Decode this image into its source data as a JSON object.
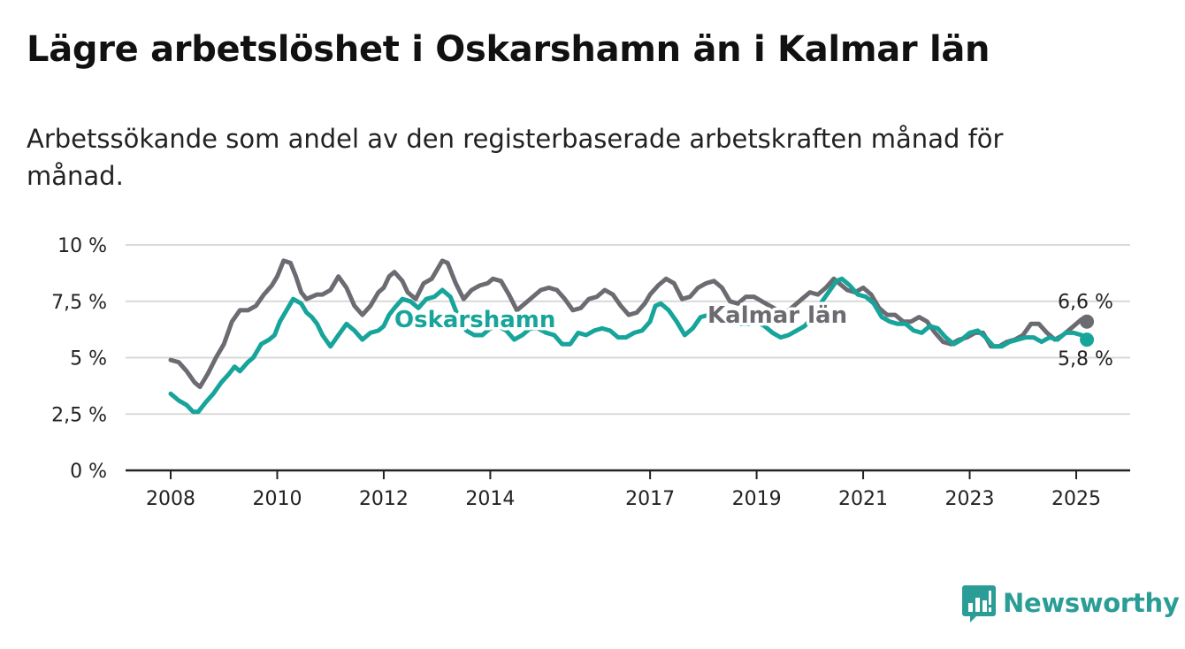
{
  "title": "Lägre arbetslöshet i Oskarshamn än i Kalmar län",
  "subtitle": "Arbetssökande som andel av den registerbaserade arbetskraften månad för månad.",
  "brand": "Newsworthy",
  "colors": {
    "kalmar": "#6d6b72",
    "oskarshamn": "#17a49a",
    "grid": "#d9d9d9",
    "axis": "#222222"
  },
  "chart_data": {
    "type": "line",
    "title": "Lägre arbetslöshet i Oskarshamn än i Kalmar län",
    "xlim": [
      2008,
      2026
    ],
    "ylim": [
      0,
      10
    ],
    "x_ticks": [
      2008,
      2010,
      2012,
      2014,
      2017,
      2019,
      2021,
      2023,
      2025
    ],
    "x_tick_labels": [
      "2008",
      "2010",
      "2012",
      "2014",
      "2017",
      "2019",
      "2021",
      "2023",
      "2025"
    ],
    "y_ticks": [
      0,
      2.5,
      5,
      7.5,
      10
    ],
    "y_tick_labels": [
      "0 %",
      "2,5 %",
      "5 %",
      "7,5 %",
      "10 %"
    ],
    "grid": true,
    "series": [
      {
        "name": "Kalmar län",
        "color": "#6d6b72",
        "end_label": "6,6 %",
        "x": [
          2008.0,
          2008.15,
          2008.3,
          2008.45,
          2008.55,
          2008.7,
          2008.85,
          2009.0,
          2009.15,
          2009.3,
          2009.45,
          2009.6,
          2009.75,
          2009.9,
          2010.0,
          2010.12,
          2010.25,
          2010.35,
          2010.45,
          2010.55,
          2010.65,
          2010.75,
          2010.85,
          2011.0,
          2011.15,
          2011.3,
          2011.45,
          2011.6,
          2011.75,
          2011.9,
          2012.0,
          2012.1,
          2012.2,
          2012.35,
          2012.45,
          2012.6,
          2012.75,
          2012.9,
          2013.0,
          2013.1,
          2013.2,
          2013.35,
          2013.5,
          2013.65,
          2013.8,
          2013.95,
          2014.05,
          2014.2,
          2014.35,
          2014.5,
          2014.65,
          2014.8,
          2014.95,
          2015.1,
          2015.25,
          2015.4,
          2015.55,
          2015.7,
          2015.85,
          2016.0,
          2016.15,
          2016.3,
          2016.45,
          2016.6,
          2016.75,
          2016.9,
          2017.0,
          2017.15,
          2017.3,
          2017.45,
          2017.6,
          2017.75,
          2017.9,
          2018.05,
          2018.2,
          2018.35,
          2018.5,
          2018.65,
          2018.8,
          2018.95,
          2019.1,
          2019.25,
          2019.4,
          2019.55,
          2019.7,
          2019.85,
          2020.0,
          2020.15,
          2020.3,
          2020.45,
          2020.55,
          2020.7,
          2020.85,
          2021.0,
          2021.15,
          2021.3,
          2021.45,
          2021.6,
          2021.75,
          2021.9,
          2022.05,
          2022.2,
          2022.35,
          2022.5,
          2022.65,
          2022.8,
          2022.95,
          2023.1,
          2023.25,
          2023.4,
          2023.55,
          2023.7,
          2023.85,
          2024.0,
          2024.15,
          2024.3,
          2024.45,
          2024.6,
          2024.75,
          2024.9,
          2025.0,
          2025.1,
          2025.2
        ],
        "y": [
          4.9,
          4.8,
          4.4,
          3.9,
          3.7,
          4.3,
          5.0,
          5.6,
          6.6,
          7.1,
          7.1,
          7.3,
          7.8,
          8.2,
          8.6,
          9.3,
          9.2,
          8.6,
          7.9,
          7.6,
          7.7,
          7.8,
          7.8,
          8.0,
          8.6,
          8.1,
          7.3,
          6.9,
          7.3,
          7.9,
          8.1,
          8.6,
          8.8,
          8.4,
          7.9,
          7.6,
          8.3,
          8.5,
          8.9,
          9.3,
          9.2,
          8.3,
          7.6,
          8.0,
          8.2,
          8.3,
          8.5,
          8.4,
          7.8,
          7.1,
          7.4,
          7.7,
          8.0,
          8.1,
          8.0,
          7.6,
          7.1,
          7.2,
          7.6,
          7.7,
          8.0,
          7.8,
          7.3,
          6.9,
          7.0,
          7.4,
          7.8,
          8.2,
          8.5,
          8.3,
          7.6,
          7.7,
          8.1,
          8.3,
          8.4,
          8.1,
          7.5,
          7.4,
          7.7,
          7.7,
          7.5,
          7.3,
          7.1,
          7.0,
          7.3,
          7.6,
          7.9,
          7.8,
          8.1,
          8.5,
          8.3,
          8.0,
          7.9,
          8.1,
          7.8,
          7.2,
          6.9,
          6.9,
          6.6,
          6.6,
          6.8,
          6.6,
          6.1,
          5.7,
          5.6,
          5.8,
          5.9,
          6.1,
          6.1,
          5.5,
          5.5,
          5.7,
          5.8,
          6.0,
          6.5,
          6.5,
          6.1,
          5.8,
          6.0,
          6.3,
          6.5,
          6.7,
          6.6
        ]
      },
      {
        "name": "Oskarshamn",
        "color": "#17a49a",
        "end_label": "5,8 %",
        "x": [
          2008.0,
          2008.15,
          2008.3,
          2008.42,
          2008.52,
          2008.65,
          2008.8,
          2008.95,
          2009.1,
          2009.2,
          2009.3,
          2009.45,
          2009.55,
          2009.7,
          2009.85,
          2009.95,
          2010.05,
          2010.15,
          2010.3,
          2010.45,
          2010.55,
          2010.65,
          2010.75,
          2010.85,
          2011.0,
          2011.15,
          2011.3,
          2011.45,
          2011.6,
          2011.75,
          2011.9,
          2012.0,
          2012.1,
          2012.2,
          2012.35,
          2012.5,
          2012.65,
          2012.8,
          2012.95,
          2013.1,
          2013.25,
          2013.4,
          2013.55,
          2013.7,
          2013.85,
          2014.0,
          2014.15,
          2014.3,
          2014.45,
          2014.6,
          2014.75,
          2014.9,
          2015.05,
          2015.2,
          2015.35,
          2015.5,
          2015.65,
          2015.8,
          2015.95,
          2016.1,
          2016.25,
          2016.4,
          2016.55,
          2016.7,
          2016.85,
          2017.0,
          2017.1,
          2017.2,
          2017.35,
          2017.5,
          2017.65,
          2017.8,
          2017.95,
          2018.1,
          2018.25,
          2018.4,
          2018.55,
          2018.7,
          2018.85,
          2019.0,
          2019.15,
          2019.3,
          2019.45,
          2019.6,
          2019.75,
          2019.9,
          2020.05,
          2020.2,
          2020.35,
          2020.5,
          2020.6,
          2020.75,
          2020.9,
          2021.05,
          2021.2,
          2021.35,
          2021.5,
          2021.65,
          2021.8,
          2021.95,
          2022.1,
          2022.25,
          2022.4,
          2022.55,
          2022.7,
          2022.85,
          2023.0,
          2023.15,
          2023.3,
          2023.45,
          2023.6,
          2023.75,
          2023.9,
          2024.05,
          2024.2,
          2024.35,
          2024.5,
          2024.65,
          2024.8,
          2024.95,
          2025.1,
          2025.2
        ],
        "y": [
          3.4,
          3.1,
          2.9,
          2.6,
          2.6,
          3.0,
          3.4,
          3.9,
          4.3,
          4.6,
          4.4,
          4.8,
          5.0,
          5.6,
          5.8,
          6.0,
          6.6,
          7.0,
          7.6,
          7.4,
          7.0,
          6.8,
          6.5,
          6.0,
          5.5,
          6.0,
          6.5,
          6.2,
          5.8,
          6.1,
          6.2,
          6.4,
          6.9,
          7.2,
          7.6,
          7.5,
          7.2,
          7.6,
          7.7,
          8.0,
          7.7,
          6.8,
          6.2,
          6.0,
          6.0,
          6.3,
          6.4,
          6.2,
          5.8,
          6.0,
          6.3,
          6.3,
          6.1,
          6.0,
          5.6,
          5.6,
          6.1,
          6.0,
          6.2,
          6.3,
          6.2,
          5.9,
          5.9,
          6.1,
          6.2,
          6.6,
          7.3,
          7.4,
          7.1,
          6.6,
          6.0,
          6.3,
          6.8,
          6.9,
          7.1,
          7.2,
          6.9,
          6.5,
          6.5,
          6.6,
          6.4,
          6.1,
          5.9,
          6.0,
          6.2,
          6.4,
          6.8,
          7.4,
          7.9,
          8.4,
          8.5,
          8.2,
          7.8,
          7.7,
          7.4,
          6.8,
          6.6,
          6.5,
          6.5,
          6.2,
          6.1,
          6.4,
          6.3,
          5.9,
          5.6,
          5.8,
          6.1,
          6.2,
          5.9,
          5.5,
          5.5,
          5.7,
          5.8,
          5.9,
          5.9,
          5.7,
          5.9,
          5.8,
          6.1,
          6.1,
          6.0,
          5.8
        ]
      }
    ]
  }
}
